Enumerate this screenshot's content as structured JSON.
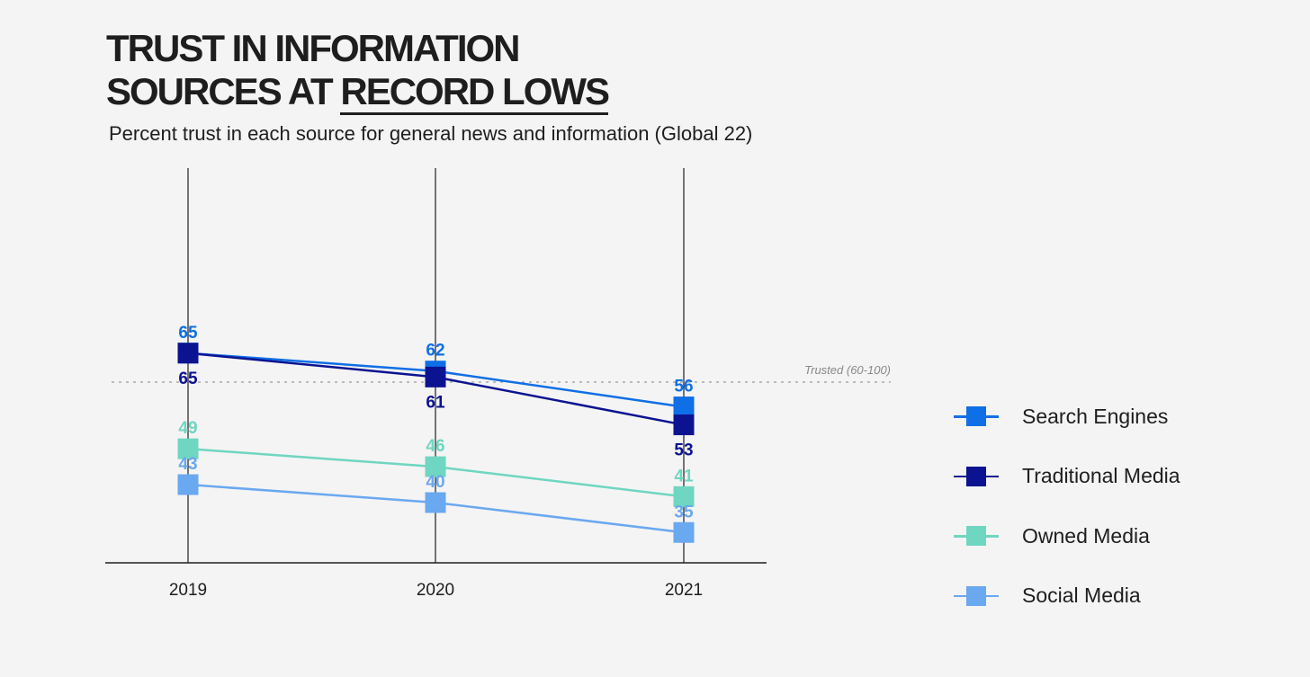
{
  "header": {
    "title_line1": "TRUST IN INFORMATION",
    "title_line2_prefix": "SOURCES AT ",
    "title_line2_emph": "RECORD LOWS",
    "subtitle": "Percent trust in each source for general news and information (Global 22)"
  },
  "chart_data": {
    "type": "line",
    "title": "TRUST IN INFORMATION SOURCES AT RECORD LOWS",
    "subtitle": "Percent trust in each source for general news and information (Global 22)",
    "categories": [
      "2019",
      "2020",
      "2021"
    ],
    "series": [
      {
        "name": "Search Engines",
        "values": [
          65,
          62,
          56
        ],
        "color": "#0f6fe6",
        "label_pos": [
          "above",
          "above",
          "above"
        ]
      },
      {
        "name": "Traditional Media",
        "values": [
          65,
          61,
          53
        ],
        "color": "#0c1391",
        "label_pos": [
          "below",
          "below",
          "below"
        ]
      },
      {
        "name": "Owned Media",
        "values": [
          49,
          46,
          41
        ],
        "color": "#6fd6c1",
        "label_pos": [
          "above",
          "above",
          "above"
        ]
      },
      {
        "name": "Social Media",
        "values": [
          43,
          40,
          35
        ],
        "color": "#6aa8f0",
        "label_pos": [
          "above",
          "above",
          "above"
        ]
      }
    ],
    "reference_line": {
      "value": 60,
      "label": "Trusted (60-100)"
    },
    "ylim": [
      25,
      67
    ],
    "grid": false,
    "legend_position": "right"
  },
  "legend": {
    "items": [
      {
        "label": "Search Engines",
        "color": "#0f6fe6"
      },
      {
        "label": "Traditional Media",
        "color": "#0c1391"
      },
      {
        "label": "Owned Media",
        "color": "#6fd6c1"
      },
      {
        "label": "Social Media",
        "color": "#6aa8f0"
      }
    ]
  }
}
